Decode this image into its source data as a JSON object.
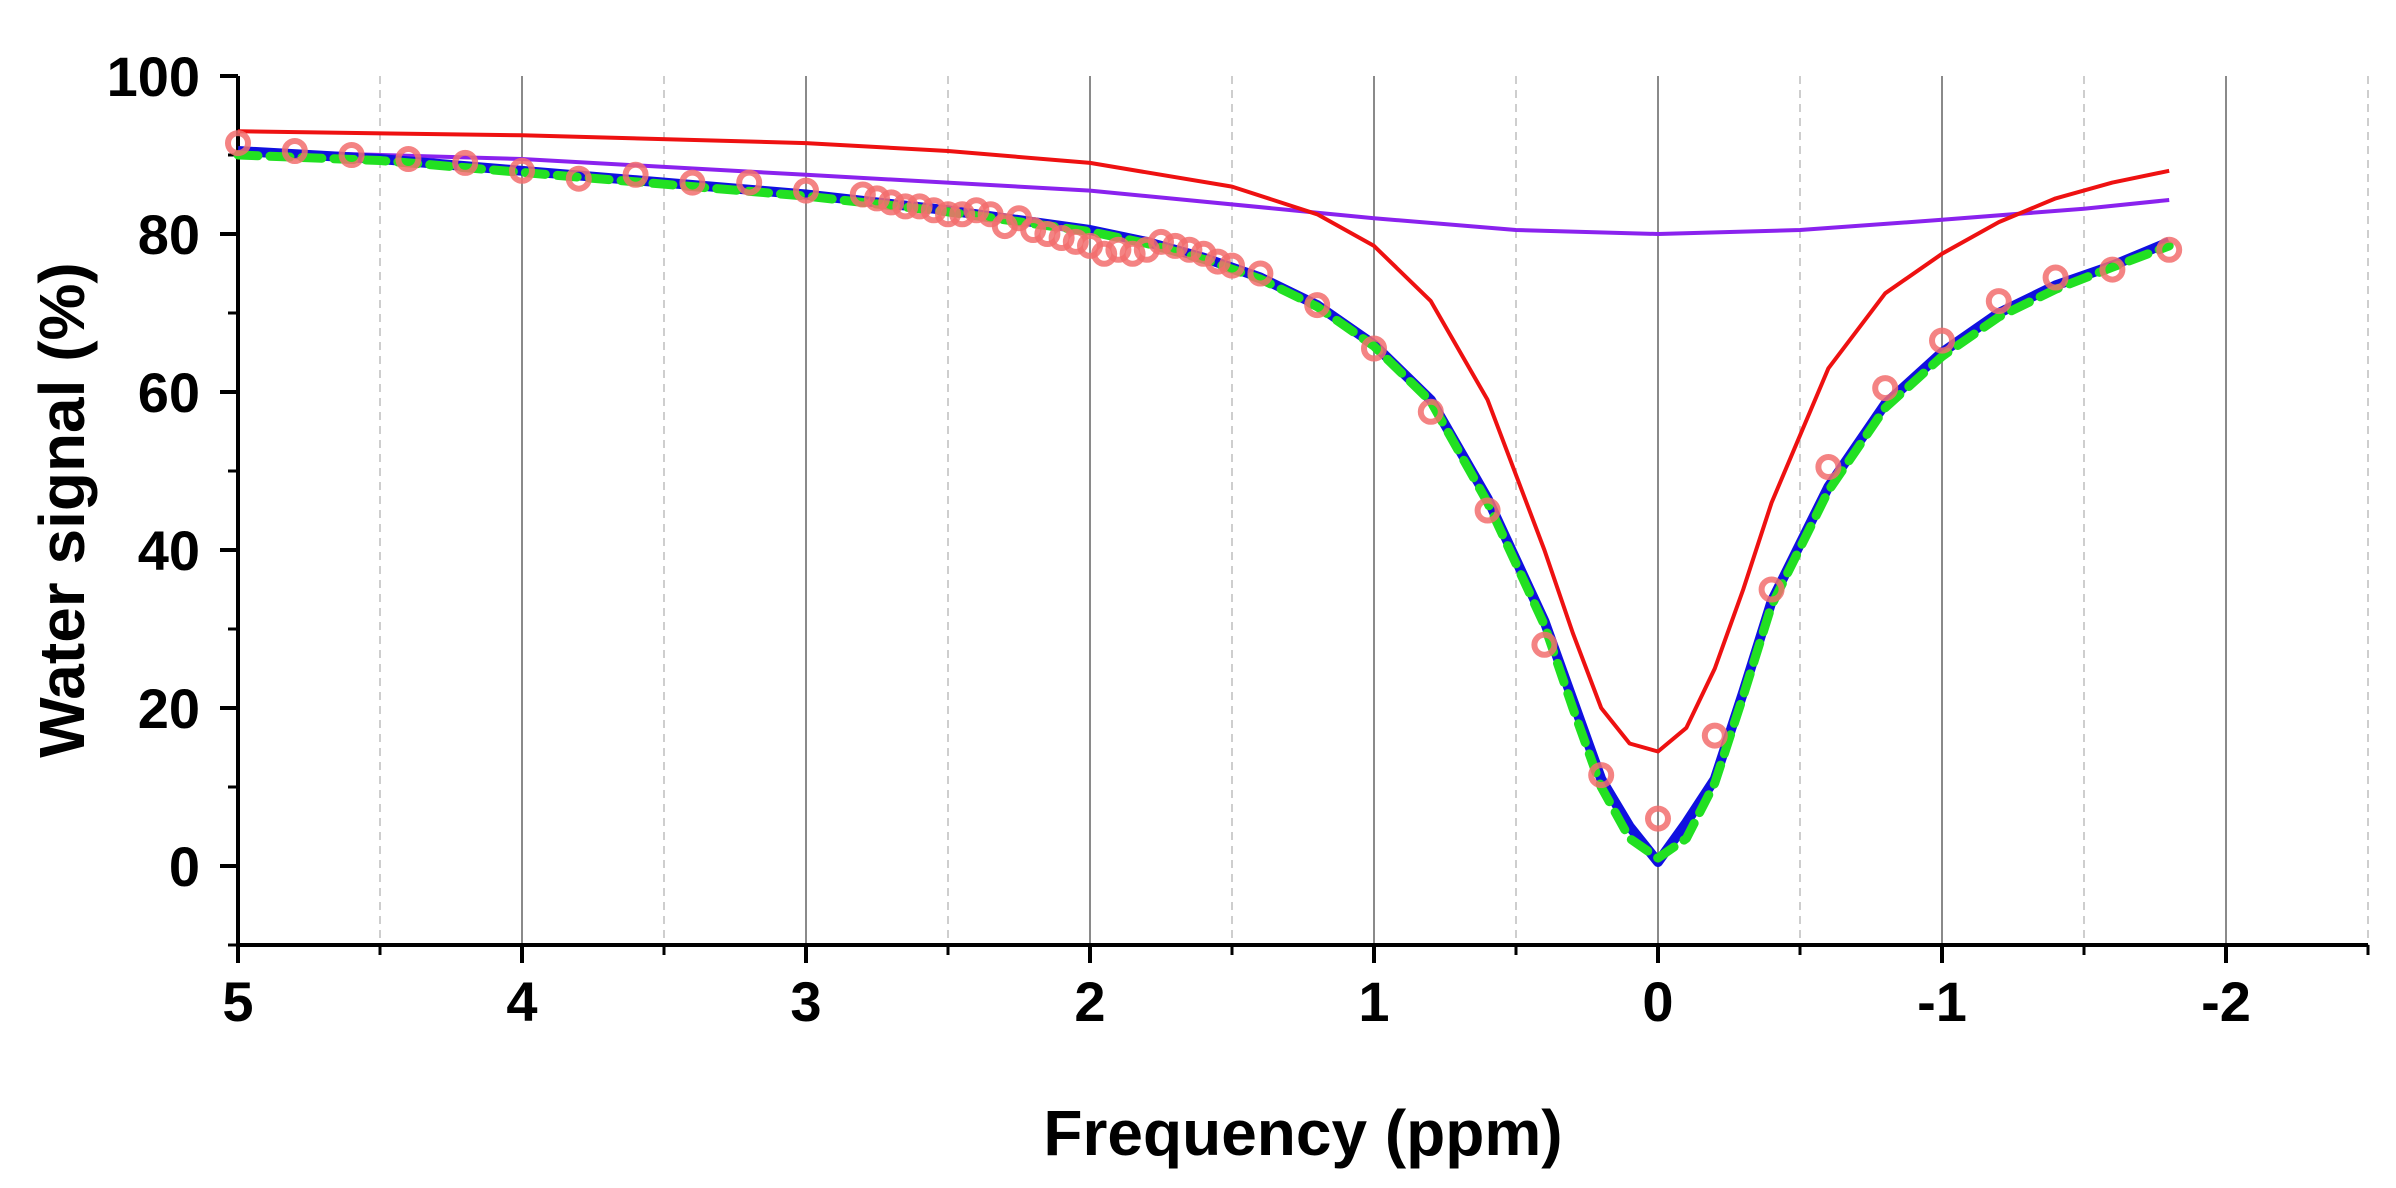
{
  "chart_data": {
    "type": "line",
    "title": "",
    "xlabel": "Frequency  (ppm)",
    "ylabel": "Water signal (%)",
    "xlim": [
      5,
      -2.5
    ],
    "ylim": [
      -10,
      100
    ],
    "x_ticks": [
      5,
      4,
      3,
      2,
      1,
      0,
      -1,
      -2
    ],
    "x_tick_labels": [
      "5",
      "4",
      "3",
      "2",
      "1",
      "0",
      "-1",
      "-2"
    ],
    "y_ticks": [
      0,
      20,
      40,
      60,
      80,
      100
    ],
    "y_tick_labels": [
      "0",
      "20",
      "40",
      "60",
      "80",
      "100"
    ],
    "grid": "vertical major solid, minor dashed",
    "legend": "none",
    "colors": {
      "measured": "#f26d6d",
      "fit_total": "#1010e0",
      "fit_dashed": "#22e022",
      "component_water": "#ee1111",
      "component_mt": "#8a22ee",
      "grid_major": "#8a8a8a",
      "grid_minor": "#bdbdbd"
    },
    "series": [
      {
        "name": "measured",
        "style": "markers-circle",
        "x": [
          5.0,
          4.8,
          4.6,
          4.4,
          4.2,
          4.0,
          3.8,
          3.6,
          3.4,
          3.2,
          3.0,
          2.8,
          2.75,
          2.7,
          2.65,
          2.6,
          2.55,
          2.5,
          2.45,
          2.4,
          2.35,
          2.3,
          2.25,
          2.2,
          2.15,
          2.1,
          2.05,
          2.0,
          1.95,
          1.9,
          1.85,
          1.8,
          1.75,
          1.7,
          1.65,
          1.6,
          1.55,
          1.5,
          1.4,
          1.2,
          1.0,
          0.8,
          0.6,
          0.4,
          0.2,
          0.0,
          -0.2,
          -0.4,
          -0.6,
          -0.8,
          -1.0,
          -1.2,
          -1.4,
          -1.6,
          -1.8
        ],
        "y": [
          91.5,
          90.5,
          90.0,
          89.5,
          89.0,
          88.0,
          87.0,
          87.5,
          86.5,
          86.5,
          85.5,
          85.0,
          84.5,
          84.0,
          83.5,
          83.5,
          83.0,
          82.5,
          82.5,
          83.0,
          82.5,
          81.0,
          82.0,
          80.5,
          80.0,
          79.5,
          79.0,
          78.5,
          77.5,
          78.0,
          77.5,
          78.0,
          79.0,
          78.5,
          78.0,
          77.5,
          76.5,
          76.0,
          75.0,
          71.0,
          65.5,
          57.5,
          45.0,
          28.0,
          11.5,
          6.0,
          16.5,
          35.0,
          50.5,
          60.5,
          66.5,
          71.5,
          74.5,
          75.5,
          78.0
        ]
      },
      {
        "name": "fit_total",
        "style": "thick-solid",
        "x": [
          5.0,
          4.5,
          4.0,
          3.5,
          3.0,
          2.5,
          2.0,
          1.8,
          1.6,
          1.4,
          1.2,
          1.0,
          0.8,
          0.6,
          0.4,
          0.3,
          0.2,
          0.1,
          0.0,
          -0.1,
          -0.2,
          -0.3,
          -0.4,
          -0.6,
          -0.8,
          -1.0,
          -1.2,
          -1.4,
          -1.6,
          -1.8
        ],
        "y": [
          90.5,
          89.5,
          88.0,
          86.5,
          85.0,
          83.0,
          80.5,
          79.0,
          77.0,
          74.5,
          71.0,
          66.0,
          59.0,
          46.5,
          31.0,
          21.0,
          11.0,
          5.0,
          0.5,
          5.5,
          11.0,
          22.0,
          33.5,
          48.0,
          58.5,
          65.0,
          70.0,
          73.5,
          76.0,
          79.0
        ]
      },
      {
        "name": "fit_dashed",
        "style": "dashed",
        "x": [
          5.0,
          4.5,
          4.0,
          3.5,
          3.0,
          2.5,
          2.0,
          1.8,
          1.6,
          1.4,
          1.2,
          1.0,
          0.8,
          0.6,
          0.4,
          0.3,
          0.2,
          0.1,
          0.0,
          -0.1,
          -0.2,
          -0.3,
          -0.4,
          -0.6,
          -0.8,
          -1.0,
          -1.2,
          -1.4,
          -1.6,
          -1.8
        ],
        "y": [
          90.0,
          89.3,
          87.8,
          86.3,
          84.8,
          82.8,
          80.3,
          78.8,
          76.8,
          74.3,
          70.8,
          65.8,
          58.8,
          46.0,
          30.5,
          20.0,
          10.0,
          3.5,
          1.0,
          3.5,
          10.5,
          21.5,
          33.0,
          47.5,
          58.0,
          64.5,
          69.5,
          73.0,
          75.8,
          78.5
        ]
      },
      {
        "name": "component_water",
        "style": "thin-solid",
        "x": [
          5.0,
          4.0,
          3.0,
          2.5,
          2.0,
          1.5,
          1.2,
          1.0,
          0.8,
          0.6,
          0.4,
          0.3,
          0.2,
          0.1,
          0.0,
          -0.1,
          -0.2,
          -0.3,
          -0.4,
          -0.6,
          -0.8,
          -1.0,
          -1.2,
          -1.4,
          -1.6,
          -1.8
        ],
        "y": [
          93.0,
          92.5,
          91.5,
          90.5,
          89.0,
          86.0,
          82.5,
          78.5,
          71.5,
          59.0,
          40.0,
          29.5,
          20.0,
          15.5,
          14.5,
          17.5,
          25.0,
          35.0,
          46.0,
          63.0,
          72.5,
          77.5,
          81.5,
          84.5,
          86.5,
          88.0
        ]
      },
      {
        "name": "component_mt",
        "style": "thin-solid",
        "x": [
          5.0,
          4.0,
          3.0,
          2.0,
          1.0,
          0.5,
          0.0,
          -0.5,
          -1.0,
          -1.5,
          -1.8
        ],
        "y": [
          90.5,
          89.5,
          87.5,
          85.5,
          82.0,
          80.5,
          80.0,
          80.5,
          81.8,
          83.2,
          84.3
        ]
      }
    ]
  }
}
